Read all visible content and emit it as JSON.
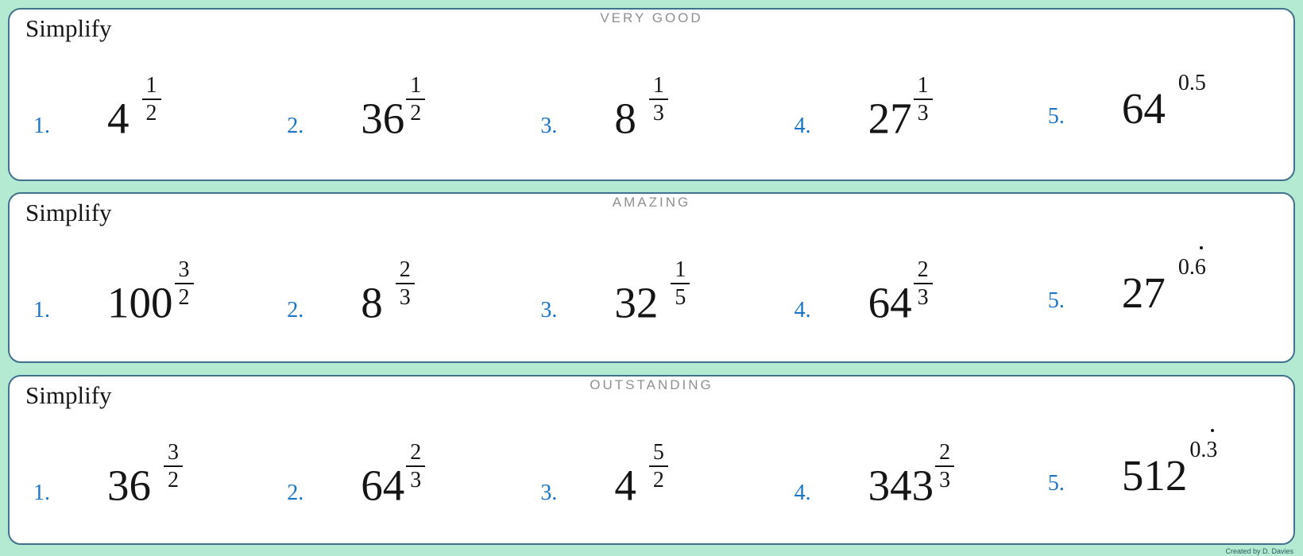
{
  "page": {
    "credit": "Created by D. Davies"
  },
  "colors": {
    "background": "#b5ead2",
    "panel_background": "#ffffff",
    "panel_border": "#40718e",
    "problem_number_blue": "#1a75c8",
    "header_gray": "#8f8f8f",
    "math_ink": "#151515",
    "credit_text": "#265a60"
  },
  "panels": [
    {
      "header": "VERY GOOD",
      "title": "Simplify",
      "problems": [
        {
          "label": "1.",
          "base": "4",
          "exponent": {
            "kind": "fraction",
            "numerator": "1",
            "denominator": "2"
          },
          "spaced": true
        },
        {
          "label": "2.",
          "base": "36",
          "exponent": {
            "kind": "fraction",
            "numerator": "1",
            "denominator": "2"
          },
          "spaced": false
        },
        {
          "label": "3.",
          "base": "8",
          "exponent": {
            "kind": "fraction",
            "numerator": "1",
            "denominator": "3"
          },
          "spaced": true
        },
        {
          "label": "4.",
          "base": "27",
          "exponent": {
            "kind": "fraction",
            "numerator": "1",
            "denominator": "3"
          },
          "spaced": false
        },
        {
          "label": "5.",
          "base": "64",
          "exponent": {
            "kind": "decimal",
            "text": "0.5",
            "recurring": false
          },
          "spaced": true
        }
      ]
    },
    {
      "header": "AMAZING",
      "title": "Simplify",
      "problems": [
        {
          "label": "1.",
          "base": "100",
          "exponent": {
            "kind": "fraction",
            "numerator": "3",
            "denominator": "2"
          },
          "spaced": false
        },
        {
          "label": "2.",
          "base": "8",
          "exponent": {
            "kind": "fraction",
            "numerator": "2",
            "denominator": "3"
          },
          "spaced": true
        },
        {
          "label": "3.",
          "base": "32",
          "exponent": {
            "kind": "fraction",
            "numerator": "1",
            "denominator": "5"
          },
          "spaced": true
        },
        {
          "label": "4.",
          "base": "64",
          "exponent": {
            "kind": "fraction",
            "numerator": "2",
            "denominator": "3"
          },
          "spaced": false
        },
        {
          "label": "5.",
          "base": "27",
          "exponent": {
            "kind": "decimal",
            "text": "0.6",
            "recurring": true
          },
          "spaced": true
        }
      ]
    },
    {
      "header": "OUTSTANDING",
      "title": "Simplify",
      "problems": [
        {
          "label": "1.",
          "base": "36",
          "exponent": {
            "kind": "fraction",
            "numerator": "3",
            "denominator": "2"
          },
          "spaced": true
        },
        {
          "label": "2.",
          "base": "64",
          "exponent": {
            "kind": "fraction",
            "numerator": "2",
            "denominator": "3"
          },
          "spaced": false
        },
        {
          "label": "3.",
          "base": "4",
          "exponent": {
            "kind": "fraction",
            "numerator": "5",
            "denominator": "2"
          },
          "spaced": true
        },
        {
          "label": "4.",
          "base": "343",
          "exponent": {
            "kind": "fraction",
            "numerator": "2",
            "denominator": "3"
          },
          "spaced": false
        },
        {
          "label": "5.",
          "base": "512",
          "exponent": {
            "kind": "decimal",
            "text": "0.3",
            "recurring": true
          },
          "spaced": false
        }
      ]
    }
  ]
}
